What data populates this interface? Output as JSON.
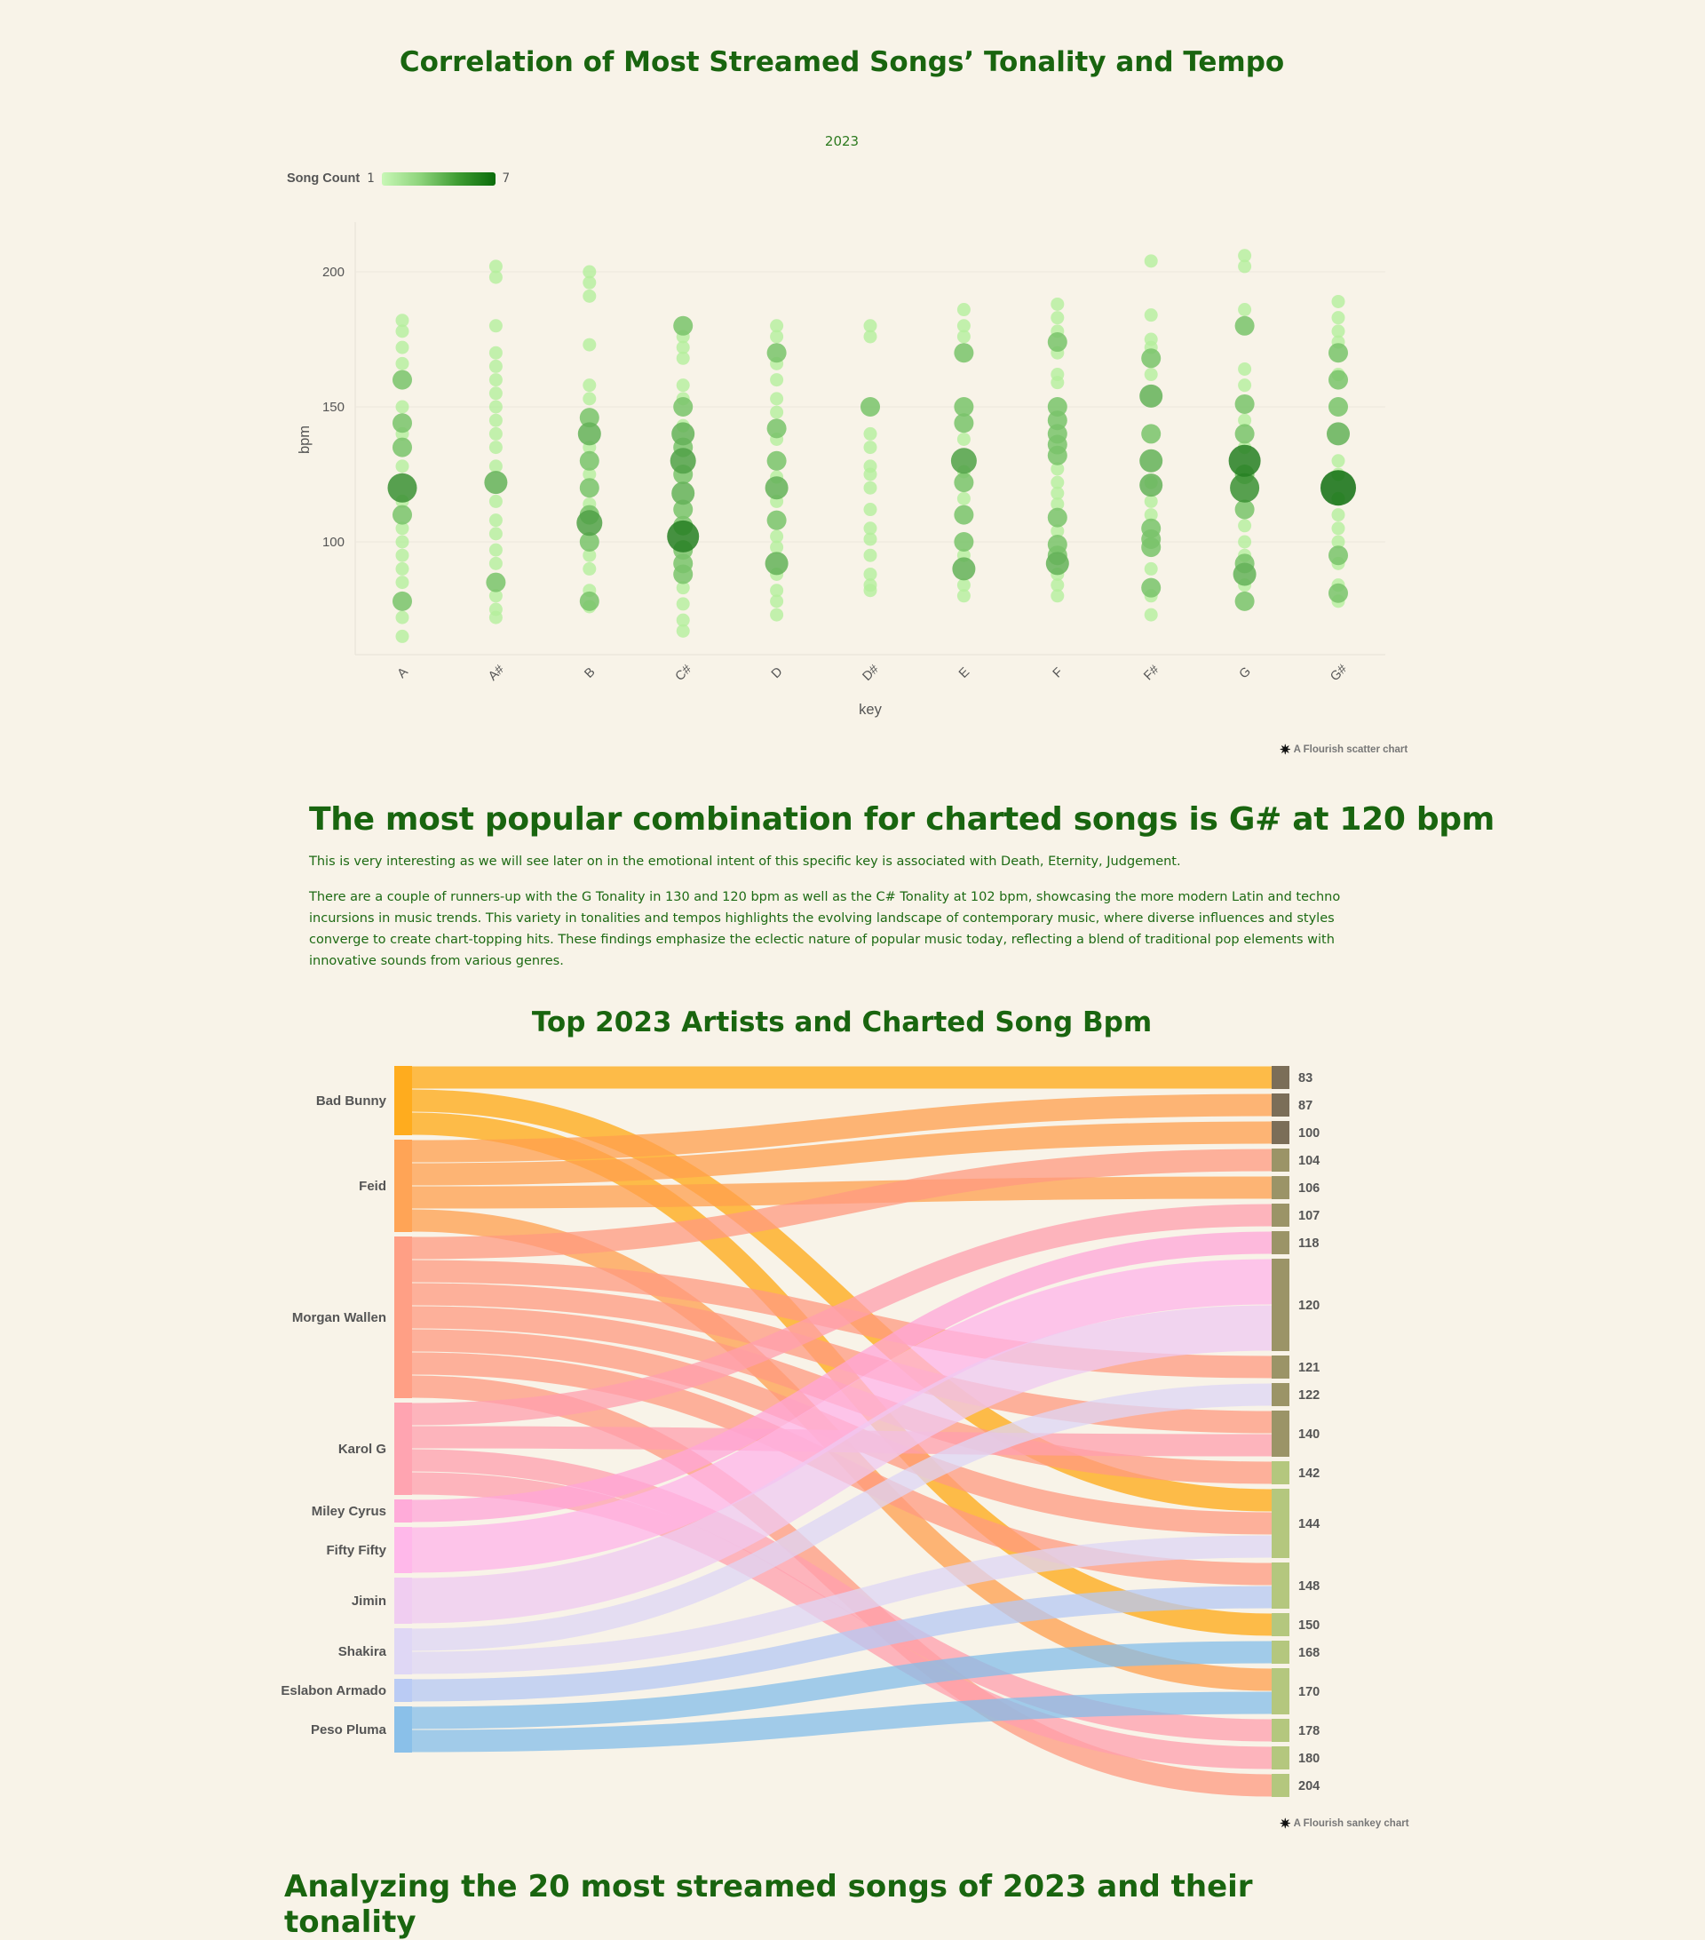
{
  "page": {
    "title": "Correlation of Most Streamed Songs’ Tonality and Tempo",
    "headline": "The most popular combination for charted songs is G# at 120 bpm",
    "paragraph1": "This is very interesting as we will see later on in the emotional intent of this specific key is associated with Death, Eternity, Judgement.",
    "paragraph2": "There are a couple of runners-up with the G Tonality in 130 and 120 bpm as well as the C# Tonality at 102 bpm, showcasing the more modern Latin and techno incursions in music trends. This variety in tonalities and tempos highlights the evolving landscape of contemporary music, where diverse influences and styles converge to create chart-topping hits. These findings emphasize the eclectic nature of popular music today, reflecting a blend of traditional pop elements with innovative sounds from various genres.",
    "sankey_title": "Top 2023 Artists and Charted Song Bpm"
  },
  "credits": {
    "scatter": "A Flourish scatter chart",
    "sankey": "A Flourish sankey chart",
    "star_icon": "✷"
  },
  "colors": {
    "background": "#f8f3e8",
    "heading": "#19650f",
    "scale_low": "#c8f7b6",
    "scale_high": "#0a6b0a"
  },
  "chart_data": [
    {
      "type": "scatter",
      "subtitle": "2023",
      "xlabel": "key",
      "ylabel": "bpm",
      "categories": [
        "A",
        "A#",
        "B",
        "C#",
        "D",
        "D#",
        "E",
        "F",
        "F#",
        "G",
        "G#"
      ],
      "yticks": [
        100,
        150,
        200
      ],
      "ylim": [
        60,
        220
      ],
      "grid": true,
      "legend": {
        "title": "Song Count",
        "min": 1,
        "max": 7
      },
      "points": {
        "A": [
          [
            182,
            1
          ],
          [
            178,
            1
          ],
          [
            172,
            1
          ],
          [
            166,
            1
          ],
          [
            160,
            2
          ],
          [
            150,
            1
          ],
          [
            144,
            2
          ],
          [
            140,
            1
          ],
          [
            135,
            2
          ],
          [
            128,
            1
          ],
          [
            120,
            5
          ],
          [
            115,
            1
          ],
          [
            110,
            2
          ],
          [
            105,
            1
          ],
          [
            100,
            1
          ],
          [
            95,
            1
          ],
          [
            90,
            1
          ],
          [
            85,
            1
          ],
          [
            78,
            2
          ],
          [
            72,
            1
          ],
          [
            65,
            1
          ]
        ],
        "A#": [
          [
            202,
            1
          ],
          [
            198,
            1
          ],
          [
            180,
            1
          ],
          [
            170,
            1
          ],
          [
            165,
            1
          ],
          [
            160,
            1
          ],
          [
            155,
            1
          ],
          [
            150,
            1
          ],
          [
            145,
            1
          ],
          [
            140,
            1
          ],
          [
            135,
            1
          ],
          [
            128,
            1
          ],
          [
            122,
            3
          ],
          [
            115,
            1
          ],
          [
            108,
            1
          ],
          [
            103,
            1
          ],
          [
            97,
            1
          ],
          [
            92,
            1
          ],
          [
            85,
            2
          ],
          [
            80,
            1
          ],
          [
            75,
            1
          ],
          [
            72,
            1
          ]
        ],
        "B": [
          [
            200,
            1
          ],
          [
            196,
            1
          ],
          [
            191,
            1
          ],
          [
            173,
            1
          ],
          [
            158,
            1
          ],
          [
            153,
            1
          ],
          [
            146,
            2
          ],
          [
            140,
            3
          ],
          [
            135,
            1
          ],
          [
            130,
            2
          ],
          [
            125,
            1
          ],
          [
            120,
            2
          ],
          [
            114,
            1
          ],
          [
            110,
            2
          ],
          [
            107,
            4
          ],
          [
            100,
            2
          ],
          [
            95,
            1
          ],
          [
            90,
            1
          ],
          [
            82,
            1
          ],
          [
            78,
            2
          ],
          [
            76,
            1
          ]
        ],
        "C#": [
          [
            180,
            2
          ],
          [
            176,
            1
          ],
          [
            172,
            1
          ],
          [
            168,
            1
          ],
          [
            158,
            1
          ],
          [
            153,
            1
          ],
          [
            150,
            2
          ],
          [
            143,
            1
          ],
          [
            140,
            3
          ],
          [
            135,
            2
          ],
          [
            130,
            4
          ],
          [
            125,
            2
          ],
          [
            118,
            3
          ],
          [
            112,
            2
          ],
          [
            106,
            2
          ],
          [
            102,
            6
          ],
          [
            97,
            2
          ],
          [
            92,
            2
          ],
          [
            88,
            2
          ],
          [
            83,
            1
          ],
          [
            77,
            1
          ],
          [
            71,
            1
          ],
          [
            67,
            1
          ]
        ],
        "D": [
          [
            180,
            1
          ],
          [
            176,
            1
          ],
          [
            170,
            2
          ],
          [
            166,
            1
          ],
          [
            160,
            1
          ],
          [
            153,
            1
          ],
          [
            148,
            1
          ],
          [
            142,
            2
          ],
          [
            138,
            1
          ],
          [
            130,
            2
          ],
          [
            124,
            1
          ],
          [
            120,
            3
          ],
          [
            115,
            1
          ],
          [
            108,
            2
          ],
          [
            102,
            1
          ],
          [
            98,
            1
          ],
          [
            92,
            3
          ],
          [
            88,
            1
          ],
          [
            82,
            1
          ],
          [
            78,
            1
          ],
          [
            73,
            1
          ]
        ],
        "D#": [
          [
            180,
            1
          ],
          [
            176,
            1
          ],
          [
            150,
            2
          ],
          [
            140,
            1
          ],
          [
            135,
            1
          ],
          [
            128,
            1
          ],
          [
            125,
            1
          ],
          [
            120,
            1
          ],
          [
            112,
            1
          ],
          [
            105,
            1
          ],
          [
            101,
            1
          ],
          [
            95,
            1
          ],
          [
            88,
            1
          ],
          [
            84,
            1
          ],
          [
            82,
            1
          ]
        ],
        "E": [
          [
            186,
            1
          ],
          [
            180,
            1
          ],
          [
            176,
            1
          ],
          [
            170,
            2
          ],
          [
            150,
            2
          ],
          [
            144,
            2
          ],
          [
            138,
            1
          ],
          [
            130,
            4
          ],
          [
            126,
            1
          ],
          [
            122,
            2
          ],
          [
            116,
            1
          ],
          [
            110,
            2
          ],
          [
            100,
            2
          ],
          [
            95,
            1
          ],
          [
            90,
            3
          ],
          [
            84,
            1
          ],
          [
            80,
            1
          ]
        ],
        "F": [
          [
            188,
            1
          ],
          [
            183,
            1
          ],
          [
            178,
            1
          ],
          [
            174,
            2
          ],
          [
            170,
            1
          ],
          [
            162,
            1
          ],
          [
            159,
            1
          ],
          [
            150,
            2
          ],
          [
            145,
            2
          ],
          [
            140,
            2
          ],
          [
            136,
            2
          ],
          [
            132,
            2
          ],
          [
            127,
            1
          ],
          [
            122,
            1
          ],
          [
            118,
            1
          ],
          [
            114,
            1
          ],
          [
            109,
            2
          ],
          [
            104,
            1
          ],
          [
            99,
            2
          ],
          [
            95,
            2
          ],
          [
            92,
            3
          ],
          [
            88,
            1
          ],
          [
            84,
            1
          ],
          [
            80,
            1
          ]
        ],
        "F#": [
          [
            204,
            1
          ],
          [
            184,
            1
          ],
          [
            175,
            1
          ],
          [
            172,
            1
          ],
          [
            168,
            2
          ],
          [
            162,
            1
          ],
          [
            154,
            3
          ],
          [
            140,
            2
          ],
          [
            130,
            3
          ],
          [
            122,
            1
          ],
          [
            121,
            3
          ],
          [
            115,
            1
          ],
          [
            110,
            1
          ],
          [
            105,
            2
          ],
          [
            101,
            2
          ],
          [
            98,
            2
          ],
          [
            90,
            1
          ],
          [
            83,
            2
          ],
          [
            80,
            1
          ],
          [
            73,
            1
          ]
        ],
        "G": [
          [
            206,
            1
          ],
          [
            202,
            1
          ],
          [
            186,
            1
          ],
          [
            180,
            2
          ],
          [
            164,
            1
          ],
          [
            158,
            1
          ],
          [
            151,
            2
          ],
          [
            145,
            1
          ],
          [
            140,
            2
          ],
          [
            135,
            1
          ],
          [
            130,
            6
          ],
          [
            125,
            2
          ],
          [
            120,
            5
          ],
          [
            112,
            2
          ],
          [
            106,
            1
          ],
          [
            100,
            1
          ],
          [
            95,
            1
          ],
          [
            92,
            2
          ],
          [
            88,
            3
          ],
          [
            84,
            1
          ],
          [
            78,
            2
          ]
        ],
        "G#": [
          [
            189,
            1
          ],
          [
            183,
            1
          ],
          [
            178,
            1
          ],
          [
            174,
            1
          ],
          [
            170,
            2
          ],
          [
            162,
            1
          ],
          [
            160,
            2
          ],
          [
            150,
            2
          ],
          [
            140,
            3
          ],
          [
            130,
            1
          ],
          [
            125,
            1
          ],
          [
            120,
            7
          ],
          [
            116,
            1
          ],
          [
            110,
            1
          ],
          [
            105,
            1
          ],
          [
            100,
            1
          ],
          [
            95,
            2
          ],
          [
            92,
            1
          ],
          [
            84,
            1
          ],
          [
            81,
            2
          ],
          [
            78,
            1
          ]
        ]
      }
    },
    {
      "type": "sankey",
      "title": "Top 2023 Artists and Charted Song Bpm",
      "sources": [
        "Bad Bunny",
        "Feid",
        "Morgan Wallen",
        "Karol G",
        "Miley Cyrus",
        "Fifty Fifty",
        "Jimin",
        "Shakira",
        "Eslabon Armado",
        "Peso Pluma"
      ],
      "targets": [
        "83",
        "87",
        "100",
        "104",
        "106",
        "107",
        "118",
        "120",
        "121",
        "122",
        "140",
        "142",
        "144",
        "148",
        "150",
        "168",
        "170",
        "178",
        "180",
        "204"
      ],
      "links": [
        {
          "source": "Bad Bunny",
          "target": "83",
          "value": 1
        },
        {
          "source": "Bad Bunny",
          "target": "144",
          "value": 1
        },
        {
          "source": "Bad Bunny",
          "target": "150",
          "value": 1
        },
        {
          "source": "Feid",
          "target": "87",
          "value": 1
        },
        {
          "source": "Feid",
          "target": "100",
          "value": 1
        },
        {
          "source": "Feid",
          "target": "106",
          "value": 1
        },
        {
          "source": "Feid",
          "target": "170",
          "value": 1
        },
        {
          "source": "Morgan Wallen",
          "target": "104",
          "value": 1
        },
        {
          "source": "Morgan Wallen",
          "target": "121",
          "value": 1
        },
        {
          "source": "Morgan Wallen",
          "target": "140",
          "value": 1
        },
        {
          "source": "Morgan Wallen",
          "target": "142",
          "value": 1
        },
        {
          "source": "Morgan Wallen",
          "target": "144",
          "value": 1
        },
        {
          "source": "Morgan Wallen",
          "target": "148",
          "value": 1
        },
        {
          "source": "Morgan Wallen",
          "target": "204",
          "value": 1
        },
        {
          "source": "Karol G",
          "target": "107",
          "value": 1
        },
        {
          "source": "Karol G",
          "target": "140",
          "value": 1
        },
        {
          "source": "Karol G",
          "target": "178",
          "value": 1
        },
        {
          "source": "Karol G",
          "target": "180",
          "value": 1
        },
        {
          "source": "Miley Cyrus",
          "target": "118",
          "value": 1
        },
        {
          "source": "Fifty Fifty",
          "target": "120",
          "value": 2
        },
        {
          "source": "Jimin",
          "target": "120",
          "value": 2
        },
        {
          "source": "Shakira",
          "target": "122",
          "value": 1
        },
        {
          "source": "Shakira",
          "target": "144",
          "value": 1
        },
        {
          "source": "Eslabon Armado",
          "target": "148",
          "value": 1
        },
        {
          "source": "Peso Pluma",
          "target": "168",
          "value": 1
        },
        {
          "source": "Peso Pluma",
          "target": "170",
          "value": 1
        }
      ]
    }
  ],
  "bottom_partial_heading": "Analyzing the 20 most streamed songs of 2023 and their tonality"
}
